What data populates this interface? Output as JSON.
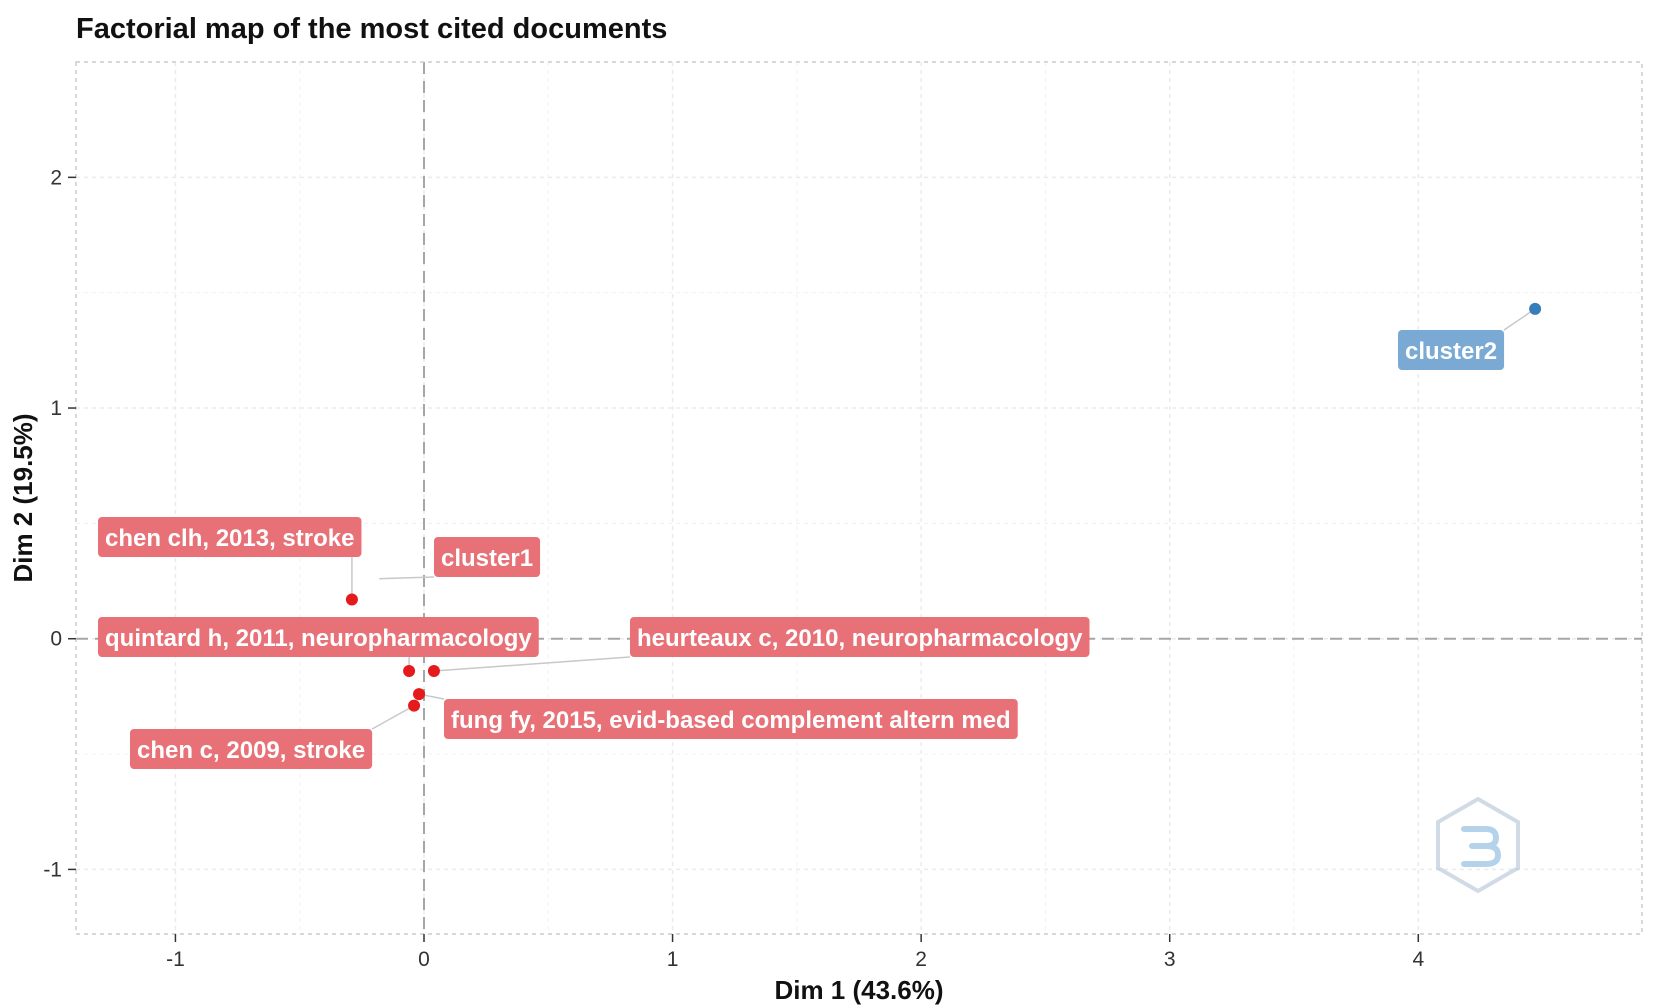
{
  "chart_data": {
    "type": "scatter",
    "title": "Factorial map of the most cited documents",
    "xlabel": "Dim 1 (43.6%)",
    "ylabel": "Dim 2 (19.5%)",
    "xlim": [
      -1.4,
      4.9
    ],
    "ylim": [
      -1.28,
      2.5
    ],
    "x_ticks": [
      -1,
      0,
      1,
      2,
      3,
      4
    ],
    "y_ticks": [
      -1,
      0,
      1,
      2
    ],
    "grid": true,
    "reference_lines": {
      "x": 0,
      "y": 0
    },
    "colors": {
      "cluster1": "#e41a1c",
      "cluster1_label": "#e87178",
      "cluster2": "#377eb8",
      "cluster2_label": "#7aaad4"
    },
    "points": [
      {
        "x": -0.29,
        "y": 0.17,
        "cluster": 1
      },
      {
        "x": -0.06,
        "y": -0.14,
        "cluster": 1
      },
      {
        "x": 0.04,
        "y": -0.14,
        "cluster": 1
      },
      {
        "x": -0.02,
        "y": -0.24,
        "cluster": 1
      },
      {
        "x": -0.04,
        "y": -0.29,
        "cluster": 1
      },
      {
        "x": 4.47,
        "y": 1.43,
        "cluster": 2
      }
    ],
    "labels": [
      {
        "text": "chen clh, 2013, stroke",
        "x": -0.29,
        "y": 0.17,
        "cluster": 1
      },
      {
        "text": "cluster1",
        "x": -0.18,
        "y": 0.26,
        "cluster": 1
      },
      {
        "text": "quintard h, 2011, neuropharmacology",
        "x": -0.06,
        "y": -0.14,
        "cluster": 1
      },
      {
        "text": "heurteaux c, 2010, neuropharmacology",
        "x": 0.04,
        "y": -0.14,
        "cluster": 1
      },
      {
        "text": "fung fy, 2015, evid-based complement altern med",
        "x": -0.02,
        "y": -0.24,
        "cluster": 1
      },
      {
        "text": "chen c, 2009, stroke",
        "x": -0.04,
        "y": -0.29,
        "cluster": 1
      },
      {
        "text": "cluster2",
        "x": 4.47,
        "y": 1.43,
        "cluster": 2
      }
    ]
  }
}
